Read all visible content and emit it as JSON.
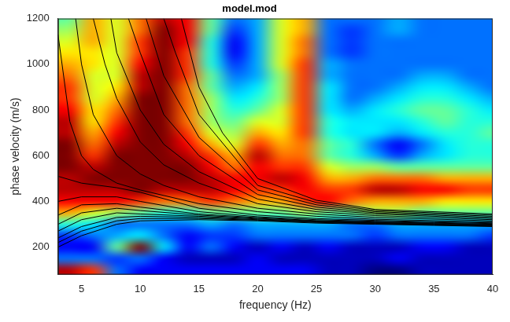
{
  "chart_data": {
    "type": "heatmap",
    "title": "model.mod",
    "x_label": "frequency (Hz)",
    "y_label": "phase velocity (m/s)",
    "xlim": [
      3,
      40
    ],
    "ylim": [
      80,
      1200
    ],
    "xticks": [
      5,
      10,
      15,
      20,
      25,
      30,
      35,
      40
    ],
    "yticks": [
      200,
      400,
      600,
      800,
      1000,
      1200
    ],
    "grid": false,
    "heatmap": {
      "x": [
        4,
        6,
        8,
        10,
        12,
        14,
        16,
        18,
        20,
        22,
        24,
        26,
        28,
        30,
        32,
        34,
        36,
        38,
        40
      ],
      "y": [
        100,
        150,
        200,
        250,
        300,
        350,
        400,
        450,
        500,
        550,
        600,
        650,
        700,
        750,
        800,
        850,
        900,
        950,
        1000,
        1050,
        1100,
        1150,
        1200
      ],
      "cells": [
        [
          0.9,
          0.8,
          0.3,
          0.2,
          0.2,
          0.2,
          0.2,
          0.2,
          0.2,
          0.2,
          0.2,
          0.15,
          0.15,
          0.1,
          0.1,
          0.15,
          0.15,
          0.15,
          0.15
        ],
        [
          0.3,
          0.3,
          0.25,
          0.3,
          0.2,
          0.15,
          0.15,
          0.15,
          0.2,
          0.15,
          0.15,
          0.15,
          0.15,
          0.15,
          0.2,
          0.15,
          0.15,
          0.15,
          0.15
        ],
        [
          0.2,
          0.2,
          0.5,
          0.95,
          0.4,
          0.2,
          0.3,
          0.2,
          0.15,
          0.2,
          0.15,
          0.2,
          0.15,
          0.15,
          0.15,
          0.2,
          0.2,
          0.15,
          0.15
        ],
        [
          0.25,
          0.3,
          0.35,
          0.4,
          0.3,
          0.2,
          0.25,
          0.25,
          0.3,
          0.3,
          0.3,
          0.3,
          0.3,
          0.25,
          0.3,
          0.3,
          0.3,
          0.3,
          0.25
        ],
        [
          0.45,
          0.4,
          0.3,
          0.3,
          0.3,
          0.3,
          0.35,
          0.3,
          0.35,
          0.35,
          0.35,
          0.35,
          0.3,
          0.3,
          0.35,
          0.35,
          0.35,
          0.35,
          0.35
        ],
        [
          0.7,
          0.6,
          0.55,
          0.5,
          0.45,
          0.45,
          0.5,
          0.5,
          0.5,
          0.5,
          0.55,
          0.5,
          0.5,
          0.55,
          0.55,
          0.5,
          0.5,
          0.5,
          0.5
        ],
        [
          0.85,
          0.85,
          0.85,
          0.8,
          0.75,
          0.75,
          0.8,
          0.75,
          0.7,
          0.7,
          0.8,
          0.85,
          0.75,
          0.7,
          0.7,
          0.7,
          0.65,
          0.65,
          0.65
        ],
        [
          0.9,
          0.9,
          0.9,
          0.95,
          0.9,
          0.9,
          0.9,
          0.85,
          0.8,
          0.8,
          0.85,
          0.8,
          0.8,
          0.9,
          0.9,
          0.85,
          0.85,
          0.8,
          0.8
        ],
        [
          0.9,
          0.95,
          0.95,
          0.95,
          0.95,
          0.95,
          0.9,
          0.85,
          0.85,
          0.9,
          0.85,
          0.7,
          0.7,
          0.75,
          0.75,
          0.75,
          0.7,
          0.7,
          0.7
        ],
        [
          0.95,
          0.9,
          0.95,
          0.95,
          0.95,
          0.95,
          0.85,
          0.75,
          0.85,
          0.8,
          0.8,
          0.6,
          0.55,
          0.55,
          0.5,
          0.5,
          0.5,
          0.5,
          0.5
        ],
        [
          0.95,
          0.8,
          0.95,
          0.95,
          0.95,
          0.9,
          0.8,
          0.7,
          0.9,
          0.75,
          0.75,
          0.5,
          0.45,
          0.35,
          0.25,
          0.35,
          0.4,
          0.45,
          0.45
        ],
        [
          0.95,
          0.75,
          0.9,
          0.95,
          0.95,
          0.85,
          0.7,
          0.6,
          0.8,
          0.7,
          0.75,
          0.5,
          0.45,
          0.3,
          0.2,
          0.3,
          0.4,
          0.45,
          0.45
        ],
        [
          0.9,
          0.7,
          0.85,
          0.95,
          0.95,
          0.8,
          0.6,
          0.55,
          0.7,
          0.65,
          0.8,
          0.45,
          0.4,
          0.4,
          0.35,
          0.4,
          0.45,
          0.45,
          0.5
        ],
        [
          0.9,
          0.65,
          0.8,
          0.95,
          0.95,
          0.75,
          0.55,
          0.5,
          0.6,
          0.6,
          0.8,
          0.45,
          0.4,
          0.4,
          0.4,
          0.45,
          0.5,
          0.45,
          0.45
        ],
        [
          0.85,
          0.65,
          0.75,
          0.95,
          0.95,
          0.75,
          0.55,
          0.45,
          0.5,
          0.6,
          0.8,
          0.4,
          0.35,
          0.4,
          0.45,
          0.5,
          0.5,
          0.45,
          0.4
        ],
        [
          0.8,
          0.6,
          0.7,
          0.95,
          0.95,
          0.75,
          0.55,
          0.4,
          0.45,
          0.55,
          0.8,
          0.4,
          0.3,
          0.35,
          0.4,
          0.45,
          0.45,
          0.4,
          0.35
        ],
        [
          0.8,
          0.6,
          0.65,
          0.9,
          0.95,
          0.75,
          0.5,
          0.35,
          0.4,
          0.55,
          0.8,
          0.4,
          0.3,
          0.3,
          0.35,
          0.4,
          0.4,
          0.35,
          0.3
        ],
        [
          0.75,
          0.6,
          0.6,
          0.9,
          0.95,
          0.8,
          0.5,
          0.3,
          0.35,
          0.55,
          0.8,
          0.35,
          0.3,
          0.3,
          0.3,
          0.35,
          0.35,
          0.3,
          0.3
        ],
        [
          0.7,
          0.65,
          0.6,
          0.85,
          0.95,
          0.8,
          0.45,
          0.25,
          0.35,
          0.6,
          0.8,
          0.35,
          0.3,
          0.3,
          0.3,
          0.3,
          0.3,
          0.3,
          0.3
        ],
        [
          0.65,
          0.65,
          0.6,
          0.8,
          0.95,
          0.8,
          0.45,
          0.2,
          0.35,
          0.6,
          0.75,
          0.3,
          0.25,
          0.3,
          0.3,
          0.3,
          0.3,
          0.3,
          0.3
        ],
        [
          0.6,
          0.7,
          0.6,
          0.8,
          0.95,
          0.85,
          0.45,
          0.2,
          0.35,
          0.6,
          0.75,
          0.3,
          0.25,
          0.3,
          0.3,
          0.3,
          0.3,
          0.3,
          0.3
        ],
        [
          0.55,
          0.7,
          0.6,
          0.75,
          0.95,
          0.85,
          0.5,
          0.25,
          0.35,
          0.6,
          0.7,
          0.3,
          0.25,
          0.3,
          0.35,
          0.3,
          0.3,
          0.3,
          0.3
        ],
        [
          0.5,
          0.7,
          0.6,
          0.75,
          0.9,
          0.85,
          0.5,
          0.3,
          0.35,
          0.6,
          0.7,
          0.3,
          0.3,
          0.3,
          0.35,
          0.3,
          0.3,
          0.3,
          0.3
        ]
      ]
    },
    "series": [
      {
        "type": "line",
        "color": "#000000",
        "x": [
          3,
          5,
          8,
          10,
          15,
          20,
          25,
          30,
          35,
          40
        ],
        "values": [
          200,
          250,
          300,
          315,
          320,
          315,
          305,
          300,
          295,
          290
        ]
      },
      {
        "type": "line",
        "color": "#000000",
        "x": [
          3,
          5,
          8,
          10,
          15,
          20,
          25,
          30,
          35,
          40
        ],
        "values": [
          220,
          270,
          315,
          325,
          325,
          318,
          308,
          302,
          297,
          292
        ]
      },
      {
        "type": "line",
        "color": "#000000",
        "x": [
          3,
          5,
          8,
          10,
          15,
          20,
          25,
          30,
          35,
          40
        ],
        "values": [
          240,
          290,
          330,
          335,
          330,
          320,
          310,
          304,
          299,
          294
        ]
      },
      {
        "type": "line",
        "color": "#000000",
        "x": [
          3,
          5,
          8,
          10,
          15,
          20,
          25,
          30,
          35,
          40
        ],
        "values": [
          270,
          320,
          350,
          345,
          335,
          323,
          312,
          306,
          301,
          296
        ]
      },
      {
        "type": "line",
        "color": "#000000",
        "x": [
          3,
          5,
          8,
          10,
          15,
          20,
          25,
          30,
          35,
          40
        ],
        "values": [
          300,
          350,
          370,
          360,
          340,
          326,
          314,
          308,
          303,
          298
        ]
      },
      {
        "type": "line",
        "color": "#000000",
        "x": [
          3,
          5,
          8,
          10,
          15,
          20,
          25,
          30,
          35,
          40
        ],
        "values": [
          340,
          385,
          390,
          375,
          345,
          329,
          316,
          310,
          305,
          300
        ]
      },
      {
        "type": "line",
        "color": "#000000",
        "x": [
          3,
          5,
          8,
          10,
          15,
          20,
          25,
          30,
          35,
          40
        ],
        "values": [
          400,
          420,
          420,
          400,
          355,
          333,
          320,
          313,
          308,
          303
        ]
      },
      {
        "type": "line",
        "color": "#000000",
        "x": [
          3,
          5,
          8,
          10,
          15,
          20,
          25,
          30,
          35,
          40
        ],
        "values": [
          510,
          480,
          460,
          440,
          370,
          340,
          325,
          317,
          311,
          306
        ]
      },
      {
        "type": "line",
        "color": "#000000",
        "x": [
          3,
          4,
          5,
          6,
          8,
          10,
          15,
          20,
          25,
          30,
          40
        ],
        "values": [
          1130,
          750,
          600,
          540,
          480,
          450,
          390,
          355,
          335,
          322,
          310
        ]
      },
      {
        "type": "line",
        "color": "#000000",
        "x": [
          4.5,
          5,
          6,
          8,
          10,
          12,
          15,
          20,
          25,
          30,
          40
        ],
        "values": [
          1200,
          1000,
          780,
          600,
          520,
          470,
          420,
          370,
          345,
          330,
          315
        ]
      },
      {
        "type": "line",
        "color": "#000000",
        "x": [
          6,
          7,
          8,
          10,
          12,
          15,
          20,
          25,
          30,
          40
        ],
        "values": [
          1200,
          1000,
          850,
          660,
          560,
          480,
          390,
          355,
          338,
          320
        ]
      },
      {
        "type": "line",
        "color": "#000000",
        "x": [
          7.5,
          8,
          10,
          12,
          15,
          20,
          25,
          30,
          40
        ],
        "values": [
          1200,
          1050,
          800,
          650,
          530,
          410,
          365,
          345,
          325
        ]
      },
      {
        "type": "line",
        "color": "#000000",
        "x": [
          9,
          10,
          12,
          15,
          20,
          25,
          30,
          40
        ],
        "values": [
          1200,
          1050,
          780,
          600,
          430,
          375,
          350,
          330
        ]
      },
      {
        "type": "line",
        "color": "#000000",
        "x": [
          10.5,
          12,
          15,
          20,
          25,
          30,
          40
        ],
        "values": [
          1200,
          950,
          680,
          450,
          385,
          355,
          335
        ]
      },
      {
        "type": "line",
        "color": "#000000",
        "x": [
          12,
          13,
          15,
          20,
          25,
          30,
          40
        ],
        "values": [
          1200,
          1050,
          780,
          470,
          395,
          360,
          340
        ]
      },
      {
        "type": "line",
        "color": "#000000",
        "x": [
          13.5,
          15,
          17,
          20,
          25,
          30,
          40
        ],
        "values": [
          1200,
          900,
          700,
          500,
          405,
          365,
          345
        ]
      }
    ]
  }
}
